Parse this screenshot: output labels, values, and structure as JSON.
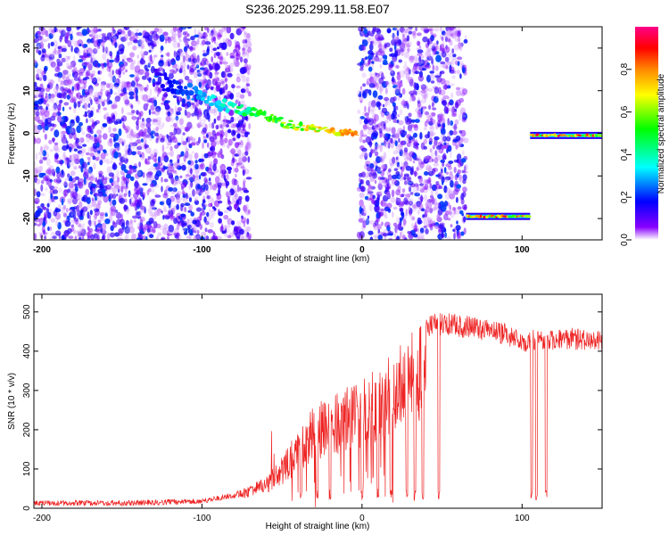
{
  "figure": {
    "title": "S236.2025.299.11.58.E07"
  },
  "chart_data": [
    {
      "type": "heatmap",
      "name": "spectrogram",
      "xlabel": "Height of straight line (km)",
      "ylabel": "Frequency (Hz)",
      "xlim": [
        -205,
        150
      ],
      "ylim": [
        -25,
        25
      ],
      "x_ticks": [
        -200,
        -100,
        0,
        100
      ],
      "y_ticks": [
        20,
        10,
        0,
        -10,
        -20
      ],
      "colorbar": {
        "label": "Normalized spectral amplitude",
        "range": [
          0.0,
          1.0
        ],
        "ticks": [
          0.0,
          0.2,
          0.4,
          0.6,
          0.8
        ],
        "colors": [
          "#ffffff",
          "#8800ff",
          "#0000ff",
          "#00ffff",
          "#00ff00",
          "#ffff00",
          "#ff8800",
          "#ff0000",
          "#ff0088"
        ]
      },
      "noise_regions": [
        {
          "x": [
            -205,
            -95
          ],
          "y": [
            -25,
            25
          ],
          "level": 0.12
        },
        {
          "x": [
            -95,
            -70
          ],
          "y": [
            -25,
            25
          ],
          "level": 0.05
        },
        {
          "x": [
            -2,
            65
          ],
          "y": [
            -25,
            25
          ],
          "level": 0.12
        }
      ],
      "features": [
        {
          "name": "drifting-tone",
          "points": [
            [
              -130,
              13
            ],
            [
              -110,
              10
            ],
            [
              -90,
              7
            ],
            [
              -75,
              6
            ],
            [
              -60,
              4
            ],
            [
              -45,
              2
            ],
            [
              -30,
              1
            ],
            [
              -15,
              0.3
            ],
            [
              -3,
              0
            ]
          ]
        },
        {
          "name": "offset-tone",
          "x_range": [
            65,
            105
          ],
          "frequency": -19.5
        },
        {
          "name": "carrier-tone",
          "x_range": [
            105,
            150
          ],
          "frequency": -0.5
        }
      ]
    },
    {
      "type": "line",
      "name": "snr",
      "xlabel": "Height of straight line (km)",
      "ylabel": "SNR (10 * v/v)",
      "xlim": [
        -205,
        150
      ],
      "ylim": [
        0,
        545
      ],
      "x_ticks": [
        -200,
        -100,
        0,
        100
      ],
      "y_ticks": [
        0,
        100,
        200,
        300,
        400,
        500
      ],
      "color": "#ee2222",
      "envelope": {
        "x": [
          -205,
          -150,
          -100,
          -80,
          -60,
          -50,
          -40,
          -30,
          -20,
          -10,
          0,
          10,
          20,
          30,
          40,
          50,
          60,
          70,
          80,
          90,
          100,
          110,
          120,
          130,
          140,
          150
        ],
        "y": [
          20,
          20,
          25,
          40,
          80,
          130,
          200,
          260,
          290,
          310,
          330,
          360,
          400,
          450,
          490,
          500,
          495,
          490,
          480,
          470,
          450,
          460,
          455,
          460,
          455,
          450
        ]
      },
      "dropouts": [
        -38,
        -28,
        -20,
        0,
        10,
        18,
        28,
        33,
        38,
        48,
        106,
        109,
        115
      ]
    }
  ]
}
